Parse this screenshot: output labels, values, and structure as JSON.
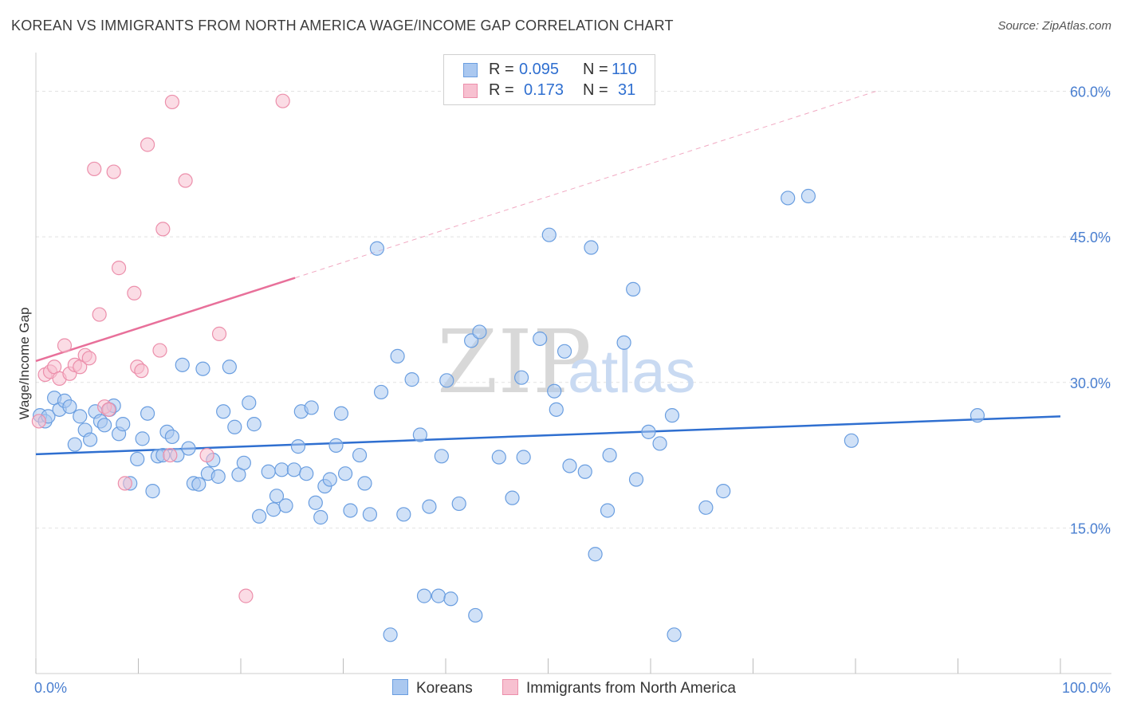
{
  "title": "KOREAN VS IMMIGRANTS FROM NORTH AMERICA WAGE/INCOME GAP CORRELATION CHART",
  "source": "Source: ZipAtlas.com",
  "colors": {
    "korean_fill": "#aac8f0",
    "korean_stroke": "#6a9ee0",
    "korean_line": "#2f6fd0",
    "imm_fill": "#f7c0d0",
    "imm_stroke": "#ec8fab",
    "imm_line": "#e8709a",
    "grid": "#e2e2e2",
    "axis_text": "#4a7fd0"
  },
  "legend": {
    "korean": {
      "r_label": "R = ",
      "r_value": "0.095",
      "n_label": "N = ",
      "n_value": "110"
    },
    "imm": {
      "r_label": "R = ",
      "r_value": "0.173",
      "n_label": "N = ",
      "n_value": "31"
    }
  },
  "bottom_legend": {
    "korean": "Koreans",
    "imm": "Immigrants from North America"
  },
  "watermark": {
    "zip": "ZIP",
    "atlas": "atlas"
  },
  "chart_data": {
    "type": "scatter",
    "xlabel": "",
    "ylabel": "Wage/Income Gap",
    "xlim": [
      0,
      100
    ],
    "ylim": [
      0,
      63
    ],
    "x_tick_labels": [
      {
        "value": 0,
        "label": "0.0%"
      },
      {
        "value": 100,
        "label": "100.0%"
      }
    ],
    "y_tick_labels": [
      {
        "value": 15,
        "label": "15.0%"
      },
      {
        "value": 30,
        "label": "30.0%"
      },
      {
        "value": 45,
        "label": "45.0%"
      },
      {
        "value": 60,
        "label": "60.0%"
      }
    ],
    "x_minor_ticks": [
      0,
      10,
      20,
      30,
      40,
      50,
      60,
      70,
      80,
      90,
      100
    ],
    "grid_y": [
      15,
      30,
      45,
      60
    ],
    "series": [
      {
        "name": "Koreans",
        "trend": {
          "x0": 0,
          "y0": 22.6,
          "x1": 100,
          "y1": 26.5,
          "dashed_from": null
        },
        "points": [
          [
            0.4,
            26.6
          ],
          [
            0.9,
            26.0
          ],
          [
            1.2,
            26.5
          ],
          [
            1.8,
            28.4
          ],
          [
            2.3,
            27.2
          ],
          [
            2.8,
            28.1
          ],
          [
            3.3,
            27.5
          ],
          [
            3.8,
            23.6
          ],
          [
            4.3,
            26.5
          ],
          [
            4.8,
            25.1
          ],
          [
            5.3,
            24.1
          ],
          [
            5.8,
            27.0
          ],
          [
            6.3,
            26.0
          ],
          [
            6.7,
            25.6
          ],
          [
            7.2,
            27.2
          ],
          [
            7.6,
            27.6
          ],
          [
            8.1,
            24.7
          ],
          [
            8.5,
            25.7
          ],
          [
            9.2,
            19.6
          ],
          [
            9.9,
            22.1
          ],
          [
            10.4,
            24.2
          ],
          [
            10.9,
            26.8
          ],
          [
            11.4,
            18.8
          ],
          [
            11.9,
            22.4
          ],
          [
            12.4,
            22.5
          ],
          [
            12.8,
            24.9
          ],
          [
            13.3,
            24.4
          ],
          [
            13.8,
            22.5
          ],
          [
            14.3,
            31.8
          ],
          [
            14.9,
            23.2
          ],
          [
            15.4,
            19.6
          ],
          [
            15.9,
            19.5
          ],
          [
            16.3,
            31.4
          ],
          [
            16.8,
            20.6
          ],
          [
            17.3,
            22.0
          ],
          [
            17.8,
            20.3
          ],
          [
            18.3,
            27.0
          ],
          [
            18.9,
            31.6
          ],
          [
            19.4,
            25.4
          ],
          [
            19.8,
            20.5
          ],
          [
            20.3,
            21.7
          ],
          [
            20.8,
            27.9
          ],
          [
            21.3,
            25.7
          ],
          [
            21.8,
            16.2
          ],
          [
            22.7,
            20.8
          ],
          [
            23.2,
            16.9
          ],
          [
            23.5,
            18.3
          ],
          [
            24.0,
            21.0
          ],
          [
            24.4,
            17.3
          ],
          [
            25.2,
            21.0
          ],
          [
            25.6,
            23.4
          ],
          [
            25.9,
            27.0
          ],
          [
            26.4,
            20.6
          ],
          [
            26.9,
            27.4
          ],
          [
            27.3,
            17.6
          ],
          [
            27.8,
            16.1
          ],
          [
            28.2,
            19.3
          ],
          [
            28.7,
            20.0
          ],
          [
            29.3,
            23.5
          ],
          [
            29.8,
            26.8
          ],
          [
            30.2,
            20.6
          ],
          [
            30.7,
            16.8
          ],
          [
            31.6,
            22.5
          ],
          [
            32.1,
            19.6
          ],
          [
            32.6,
            16.4
          ],
          [
            33.3,
            43.8
          ],
          [
            33.7,
            29.0
          ],
          [
            34.6,
            4.0
          ],
          [
            35.3,
            32.7
          ],
          [
            35.9,
            16.4
          ],
          [
            36.7,
            30.3
          ],
          [
            37.5,
            24.6
          ],
          [
            37.9,
            8.0
          ],
          [
            38.4,
            17.2
          ],
          [
            39.3,
            8.0
          ],
          [
            39.6,
            22.4
          ],
          [
            40.1,
            30.2
          ],
          [
            40.5,
            7.7
          ],
          [
            41.3,
            17.5
          ],
          [
            42.5,
            34.3
          ],
          [
            42.9,
            6.0
          ],
          [
            43.3,
            35.2
          ],
          [
            45.2,
            22.3
          ],
          [
            46.5,
            18.1
          ],
          [
            47.4,
            30.5
          ],
          [
            47.6,
            22.3
          ],
          [
            49.2,
            34.5
          ],
          [
            50.1,
            45.2
          ],
          [
            50.6,
            29.1
          ],
          [
            50.8,
            27.2
          ],
          [
            51.6,
            33.2
          ],
          [
            52.1,
            21.4
          ],
          [
            53.6,
            20.8
          ],
          [
            54.2,
            43.9
          ],
          [
            54.6,
            12.3
          ],
          [
            55.8,
            16.8
          ],
          [
            56.0,
            22.5
          ],
          [
            57.4,
            34.1
          ],
          [
            58.3,
            39.6
          ],
          [
            58.6,
            20.0
          ],
          [
            59.8,
            24.9
          ],
          [
            60.9,
            23.7
          ],
          [
            62.3,
            4.0
          ],
          [
            62.1,
            26.6
          ],
          [
            65.4,
            17.1
          ],
          [
            67.1,
            18.8
          ],
          [
            73.4,
            49.0
          ],
          [
            75.4,
            49.2
          ],
          [
            79.6,
            24.0
          ],
          [
            91.9,
            26.6
          ]
        ]
      },
      {
        "name": "Immigrants from North America",
        "trend": {
          "x0": 0,
          "y0": 32.2,
          "x1": 82,
          "y1": 60.0,
          "dashed_from": 25.3
        },
        "points": [
          [
            0.3,
            26.0
          ],
          [
            0.9,
            30.8
          ],
          [
            1.4,
            31.1
          ],
          [
            1.8,
            31.6
          ],
          [
            2.3,
            30.4
          ],
          [
            2.8,
            33.8
          ],
          [
            3.3,
            30.9
          ],
          [
            3.8,
            31.8
          ],
          [
            4.3,
            31.6
          ],
          [
            4.8,
            32.8
          ],
          [
            5.2,
            32.5
          ],
          [
            5.7,
            52.0
          ],
          [
            6.2,
            37.0
          ],
          [
            6.7,
            27.5
          ],
          [
            7.1,
            27.2
          ],
          [
            7.6,
            51.7
          ],
          [
            8.1,
            41.8
          ],
          [
            8.7,
            19.6
          ],
          [
            9.6,
            39.2
          ],
          [
            9.9,
            31.6
          ],
          [
            10.3,
            31.2
          ],
          [
            10.9,
            54.5
          ],
          [
            12.1,
            33.3
          ],
          [
            12.4,
            45.8
          ],
          [
            13.1,
            22.5
          ],
          [
            13.3,
            58.9
          ],
          [
            14.6,
            50.8
          ],
          [
            16.7,
            22.5
          ],
          [
            17.9,
            35.0
          ],
          [
            20.5,
            8.0
          ],
          [
            24.1,
            59.0
          ]
        ]
      }
    ]
  }
}
